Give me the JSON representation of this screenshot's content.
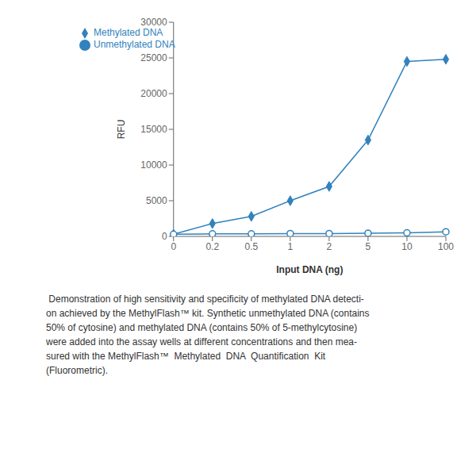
{
  "chart_data": {
    "type": "line",
    "x_label": "Input DNA (ng)",
    "y_label": "RFU",
    "categories": [
      "0",
      "0.2",
      "0.5",
      "1",
      "2",
      "5",
      "10",
      "100"
    ],
    "series": [
      {
        "name": "Methylated DNA",
        "values": [
          300,
          1800,
          2800,
          5000,
          7000,
          13500,
          24500,
          24800
        ],
        "marker": "diamond"
      },
      {
        "name": "Unmethylated DNA",
        "values": [
          300,
          350,
          350,
          400,
          400,
          450,
          500,
          650
        ],
        "marker": "circle"
      }
    ],
    "ylim": [
      0,
      30000
    ],
    "yticks": [
      0,
      5000,
      10000,
      15000,
      20000,
      25000,
      30000
    ],
    "legend": "upper left",
    "grid": false,
    "annotations": [
      " Demonstration of high sensitivity and specificity of methylated DNA detecti-",
      "on achieved by the MethylFlash™ kit. Synthetic unmethylated DNA (contains",
      "50% of cytosine) and methylated DNA (contains 50% of 5-methylcytosine)",
      "were added into the assay wells at different concentrations and then mea-",
      "sured with the MethylFlash™  Methylated  DNA  Quantification  Kit",
      "(Fluorometric)."
    ]
  }
}
